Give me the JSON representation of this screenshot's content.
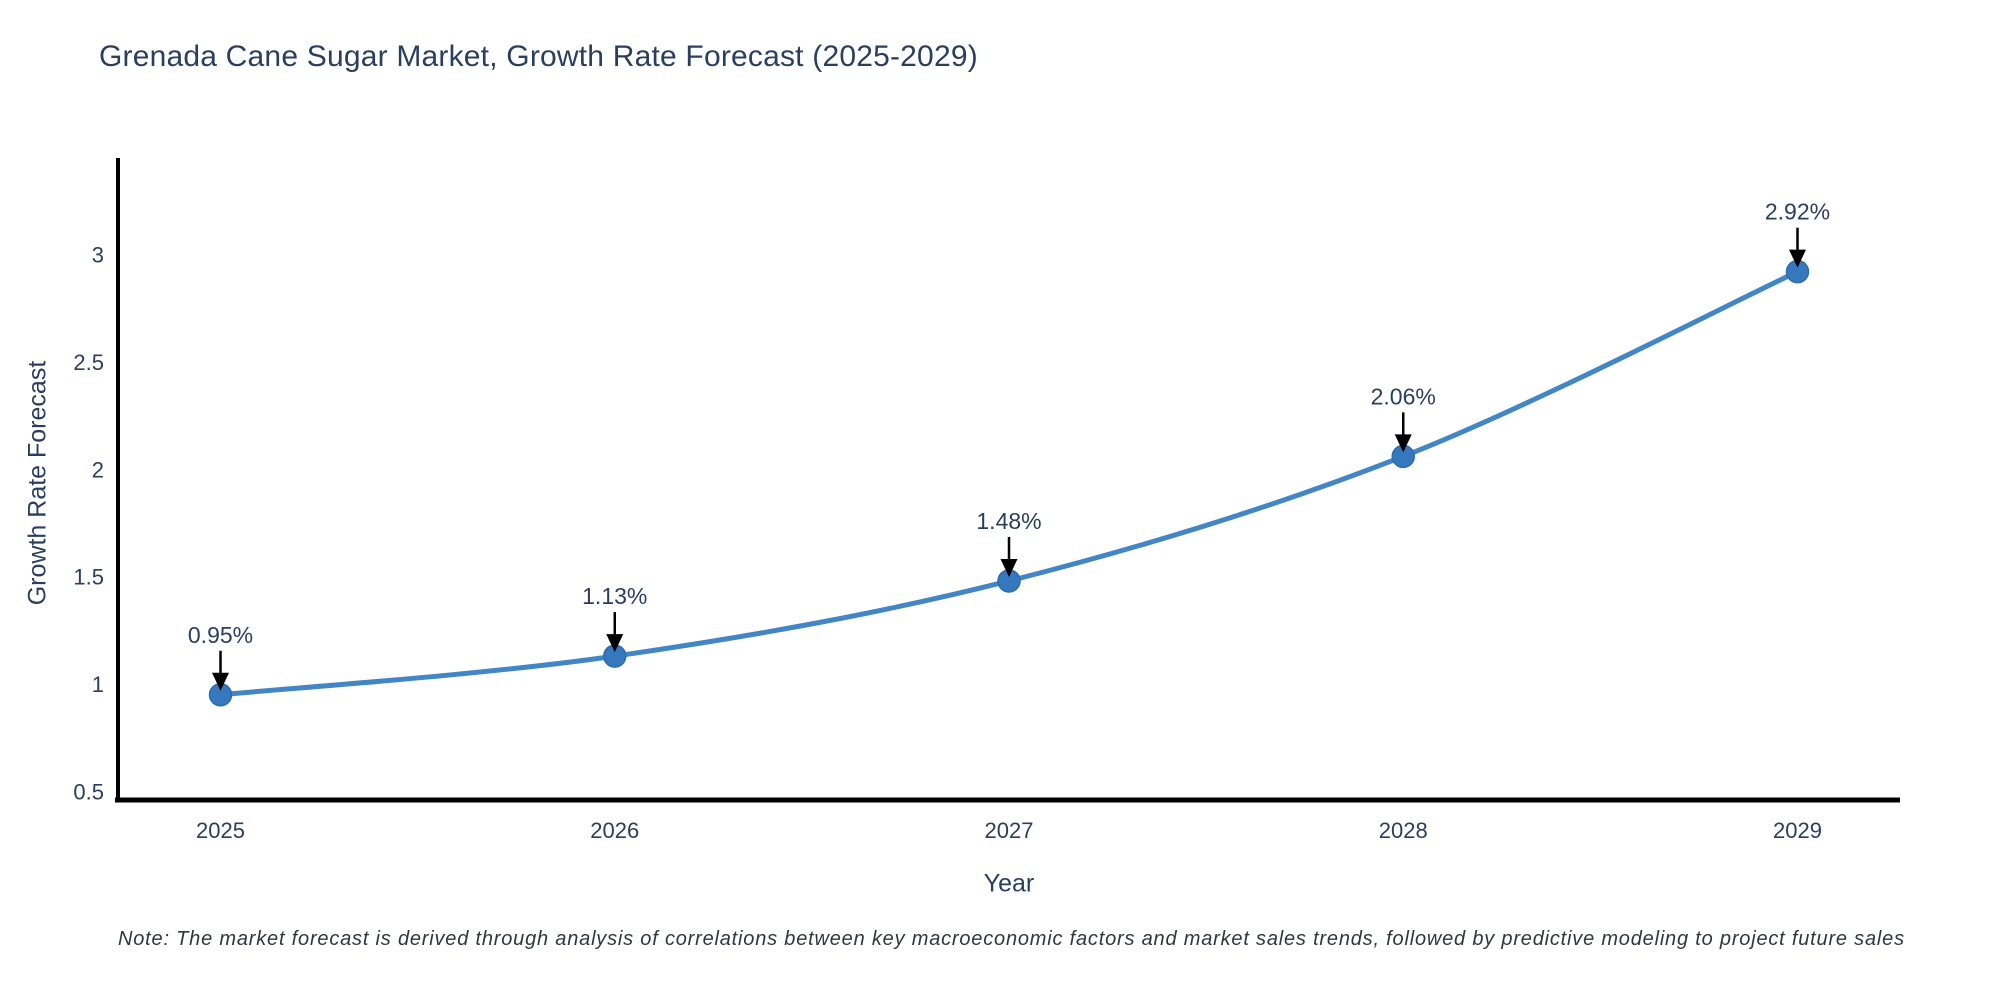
{
  "header": {
    "title": "Grenada Cane Sugar Market, Growth Rate Forecast (2025-2029)"
  },
  "footnote": {
    "text": "Note: The market forecast is derived through analysis of correlations between key macroeconomic factors and market sales trends, followed by predictive modeling to project future sales"
  },
  "chart_data": {
    "type": "line",
    "title": "Grenada Cane Sugar Market, Growth Rate Forecast (2025-2029)",
    "xlabel": "Year",
    "ylabel": "Growth Rate Forecast",
    "categories": [
      2025,
      2026,
      2027,
      2028,
      2029
    ],
    "values": [
      0.95,
      1.13,
      1.48,
      2.06,
      2.92
    ],
    "point_labels": [
      "0.95%",
      "1.13%",
      "1.48%",
      "2.06%",
      "2.92%"
    ],
    "x_ticks": [
      "2025",
      "2026",
      "2027",
      "2028",
      "2029"
    ],
    "y_ticks": [
      "0.5",
      "1",
      "1.5",
      "2",
      "2.5",
      "3"
    ],
    "y_tick_values": [
      0.5,
      1,
      1.5,
      2,
      2.5,
      3
    ],
    "xlim": [
      2024.74,
      2029.26
    ],
    "ylim": [
      0.46,
      3.44
    ],
    "grid": false,
    "legend": false,
    "line_shape": "spline",
    "colors": {
      "line": "#4386c6",
      "marker": "#3578bd",
      "marker_edge": "#2d6cae",
      "axis": "#000000",
      "text": "#2a3f5f",
      "annotation_arrow": "#000000"
    }
  }
}
